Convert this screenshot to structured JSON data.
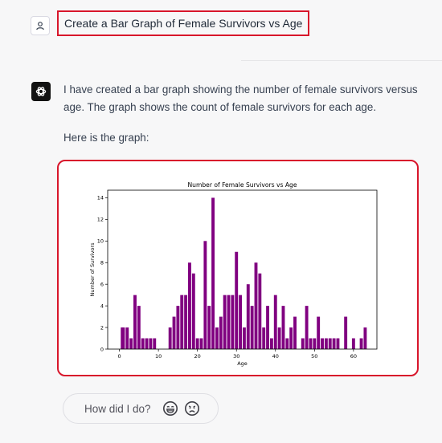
{
  "conversation": {
    "user_message": "Create a Bar Graph of Female Survivors vs Age",
    "assistant_paragraphs": [
      "I have created a bar graph showing the number of female survivors versus age. The graph shows the count of female survivors for each age.",
      "Here is the graph:"
    ]
  },
  "feedback": {
    "prompt": "How did I do?",
    "icons": [
      "smile-icon",
      "frown-icon"
    ]
  },
  "chart_data": {
    "type": "bar",
    "title": "Number of Female Survivors vs Age",
    "xlabel": "Age",
    "ylabel": "Number of Survivors",
    "xlim": [
      -3,
      66
    ],
    "ylim": [
      0,
      14.7
    ],
    "xticks": [
      0,
      10,
      20,
      30,
      40,
      50,
      60
    ],
    "yticks": [
      0,
      2,
      4,
      6,
      8,
      10,
      12,
      14
    ],
    "grid": false,
    "color": "#800080",
    "x": [
      0.75,
      1,
      2,
      3,
      4,
      5,
      6,
      7,
      8,
      9,
      13,
      14,
      15,
      16,
      17,
      18,
      19,
      20,
      21,
      22,
      23,
      24,
      25,
      26,
      27,
      28,
      29,
      30,
      31,
      32,
      33,
      34,
      35,
      36,
      37,
      38,
      39,
      40,
      41,
      42,
      43,
      44,
      45,
      47,
      48,
      49,
      50,
      51,
      52,
      53,
      54,
      55,
      56,
      58,
      60,
      62,
      63
    ],
    "values": [
      2,
      2,
      2,
      1,
      5,
      4,
      1,
      1,
      1,
      1,
      2,
      3,
      4,
      5,
      5,
      8,
      7,
      1,
      1,
      10,
      4,
      14,
      2,
      3,
      5,
      5,
      5,
      9,
      5,
      2,
      6,
      4,
      8,
      7,
      2,
      4,
      1,
      5,
      2,
      4,
      1,
      2,
      3,
      1,
      4,
      1,
      1,
      3,
      1,
      1,
      1,
      1,
      1,
      3,
      1,
      1,
      2
    ]
  }
}
